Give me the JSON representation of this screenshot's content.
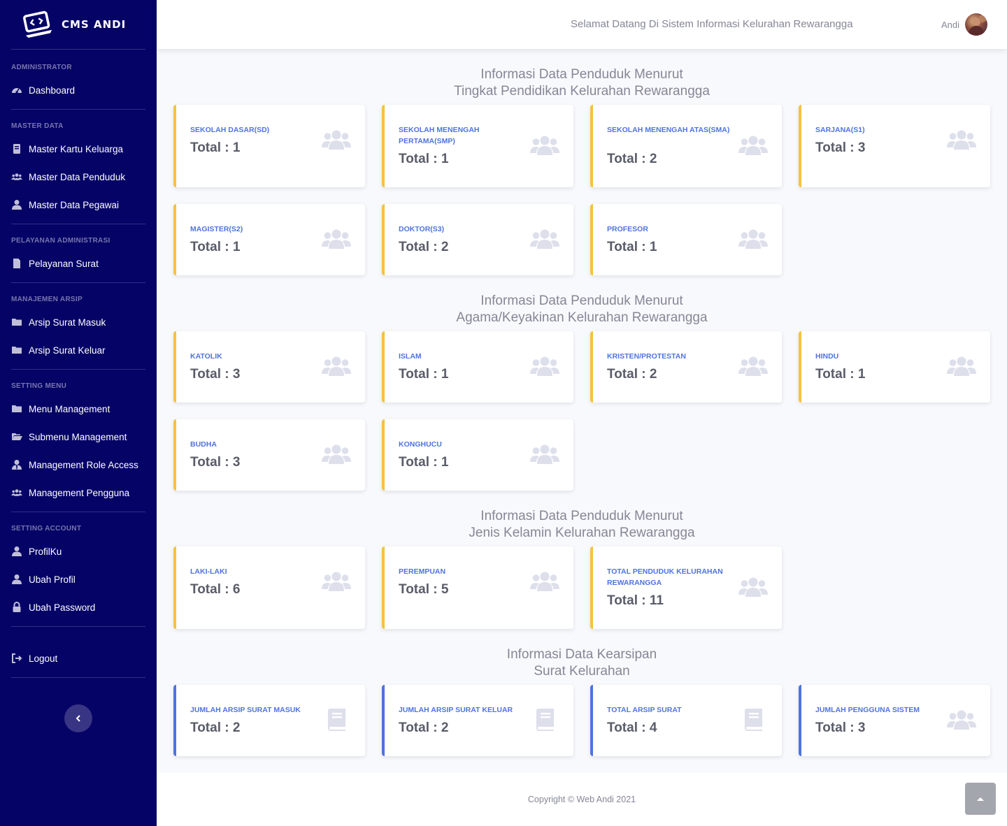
{
  "brand": {
    "name": "CMS ANDI",
    "icon": "code-laptop-icon"
  },
  "sidebar": {
    "sections": [
      {
        "heading": "Administrator",
        "items": [
          {
            "label": "Dashboard",
            "icon": "tachometer-icon"
          }
        ]
      },
      {
        "heading": "Master Data",
        "items": [
          {
            "label": "Master Kartu Keluarga",
            "icon": "book-icon"
          },
          {
            "label": "Master Data Penduduk",
            "icon": "users-icon"
          },
          {
            "label": "Master Data Pegawai",
            "icon": "user-icon"
          }
        ]
      },
      {
        "heading": "Pelayanan Administrasi",
        "items": [
          {
            "label": "Pelayanan Surat",
            "icon": "file-icon"
          }
        ]
      },
      {
        "heading": "Manajemen Arsip",
        "items": [
          {
            "label": "Arsip Surat Masuk",
            "icon": "folder-icon"
          },
          {
            "label": "Arsip Surat Keluar",
            "icon": "folder-icon"
          }
        ]
      },
      {
        "heading": "Setting Menu",
        "items": [
          {
            "label": "Menu Management",
            "icon": "folder-icon"
          },
          {
            "label": "Submenu Management",
            "icon": "folder-open-icon"
          },
          {
            "label": "Management Role Access",
            "icon": "user-tie-icon"
          },
          {
            "label": "Management Pengguna",
            "icon": "users-icon"
          }
        ]
      },
      {
        "heading": "Setting Account",
        "items": [
          {
            "label": "ProfilKu",
            "icon": "user-icon"
          },
          {
            "label": "Ubah Profil",
            "icon": "user-icon"
          },
          {
            "label": "Ubah Password",
            "icon": "lock-icon"
          }
        ]
      }
    ],
    "logout": {
      "label": "Logout",
      "icon": "sign-out-icon"
    }
  },
  "topbar": {
    "welcome": "Selamat Datang Di Sistem Informasi Kelurahan Rewarangga",
    "user_name": "Andi"
  },
  "sections": [
    {
      "title": [
        "Informasi Data Penduduk Menurut",
        "Tingkat Pendidikan Kelurahan Rewarangga"
      ],
      "cards": [
        {
          "label": "SEKOLAH DASAR(SD)",
          "value": "Total : 1",
          "icon": "users-icon"
        },
        {
          "label": "SEKOLAH MENENGAH PERTAMA(SMP)",
          "value": "Total : 1",
          "icon": "users-icon"
        },
        {
          "label": "SEKOLAH MENENGAH ATAS(SMA)",
          "value": "Total : 2",
          "icon": "users-icon"
        },
        {
          "label": "SARJANA(S1)",
          "value": "Total : 3",
          "icon": "users-icon"
        },
        {
          "label": "MAGISTER(S2)",
          "value": "Total : 1",
          "icon": "users-icon"
        },
        {
          "label": "DOKTOR(S3)",
          "value": "Total : 2",
          "icon": "users-icon"
        },
        {
          "label": "PROFESOR",
          "value": "Total : 1",
          "icon": "users-icon"
        }
      ]
    },
    {
      "title": [
        "Informasi Data Penduduk Menurut",
        "Agama/Keyakinan Kelurahan Rewarangga"
      ],
      "cards": [
        {
          "label": "KATOLIK",
          "value": "Total : 3",
          "icon": "users-icon"
        },
        {
          "label": "ISLAM",
          "value": "Total : 1",
          "icon": "users-icon"
        },
        {
          "label": "KRISTEN/PROTESTAN",
          "value": "Total : 2",
          "icon": "users-icon"
        },
        {
          "label": "HINDU",
          "value": "Total : 1",
          "icon": "users-icon"
        },
        {
          "label": "BUDHA",
          "value": "Total : 3",
          "icon": "users-icon"
        },
        {
          "label": "KONGHUCU",
          "value": "Total : 1",
          "icon": "users-icon"
        }
      ]
    },
    {
      "title": [
        "Informasi Data Penduduk Menurut",
        "Jenis Kelamin Kelurahan Rewarangga"
      ],
      "cards": [
        {
          "label": "LAKI-LAKI",
          "value": "Total : 6",
          "icon": "users-icon"
        },
        {
          "label": "PEREMPUAN",
          "value": "Total : 5",
          "icon": "users-icon"
        },
        {
          "label": "TOTAL PENDUDUK KELURAHAN REWARANGGA",
          "value": "Total : 11",
          "icon": "users-icon"
        }
      ]
    },
    {
      "title": [
        "Informasi Data Kearsipan",
        "Surat Kelurahan"
      ],
      "cards": [
        {
          "label": "JUMLAH ARSIP SURAT MASUK",
          "value": "Total : 2",
          "icon": "book-icon"
        },
        {
          "label": "JUMLAH ARSIP SURAT KELUAR",
          "value": "Total : 2",
          "icon": "book-icon"
        },
        {
          "label": "TOTAL ARSIP SURAT",
          "value": "Total : 4",
          "icon": "book-icon"
        },
        {
          "label": "JUMLAH PENGGUNA SISTEM",
          "value": "Total : 3",
          "icon": "users-icon"
        }
      ]
    }
  ],
  "footer": {
    "copyright": "Copyright © Web Andi 2021"
  },
  "colors": {
    "sidebar_bg": "#050366",
    "accent_primary": "#4e73df",
    "accent_warning": "#f6c23e",
    "icon_muted": "#dddfeb",
    "text_muted": "#858796"
  }
}
